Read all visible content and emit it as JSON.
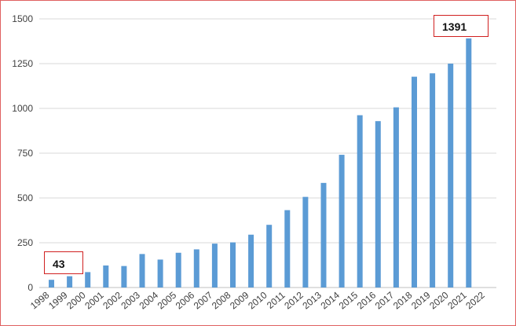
{
  "chart_data": {
    "type": "bar",
    "title": "",
    "xlabel": "",
    "ylabel": "",
    "categories": [
      "1998",
      "1999",
      "2000",
      "2001",
      "2002",
      "2003",
      "2004",
      "2005",
      "2006",
      "2007",
      "2008",
      "2009",
      "2010",
      "2011",
      "2012",
      "2013",
      "2014",
      "2015",
      "2016",
      "2017",
      "2018",
      "2019",
      "2020",
      "2021",
      "2022"
    ],
    "values": [
      43,
      63,
      86,
      123,
      120,
      187,
      156,
      194,
      213,
      245,
      252,
      295,
      350,
      432,
      506,
      584,
      741,
      962,
      929,
      1006,
      1177,
      1196,
      1250,
      1391,
      null
    ],
    "yticks": [
      0,
      250,
      500,
      750,
      1000,
      1250,
      1500
    ],
    "ylim": [
      0,
      1500
    ],
    "grid": true,
    "bar_color": "#5b9bd5",
    "annotations": [
      {
        "category": "1998",
        "label": "43"
      },
      {
        "category": "2021",
        "label": "1391"
      }
    ]
  }
}
